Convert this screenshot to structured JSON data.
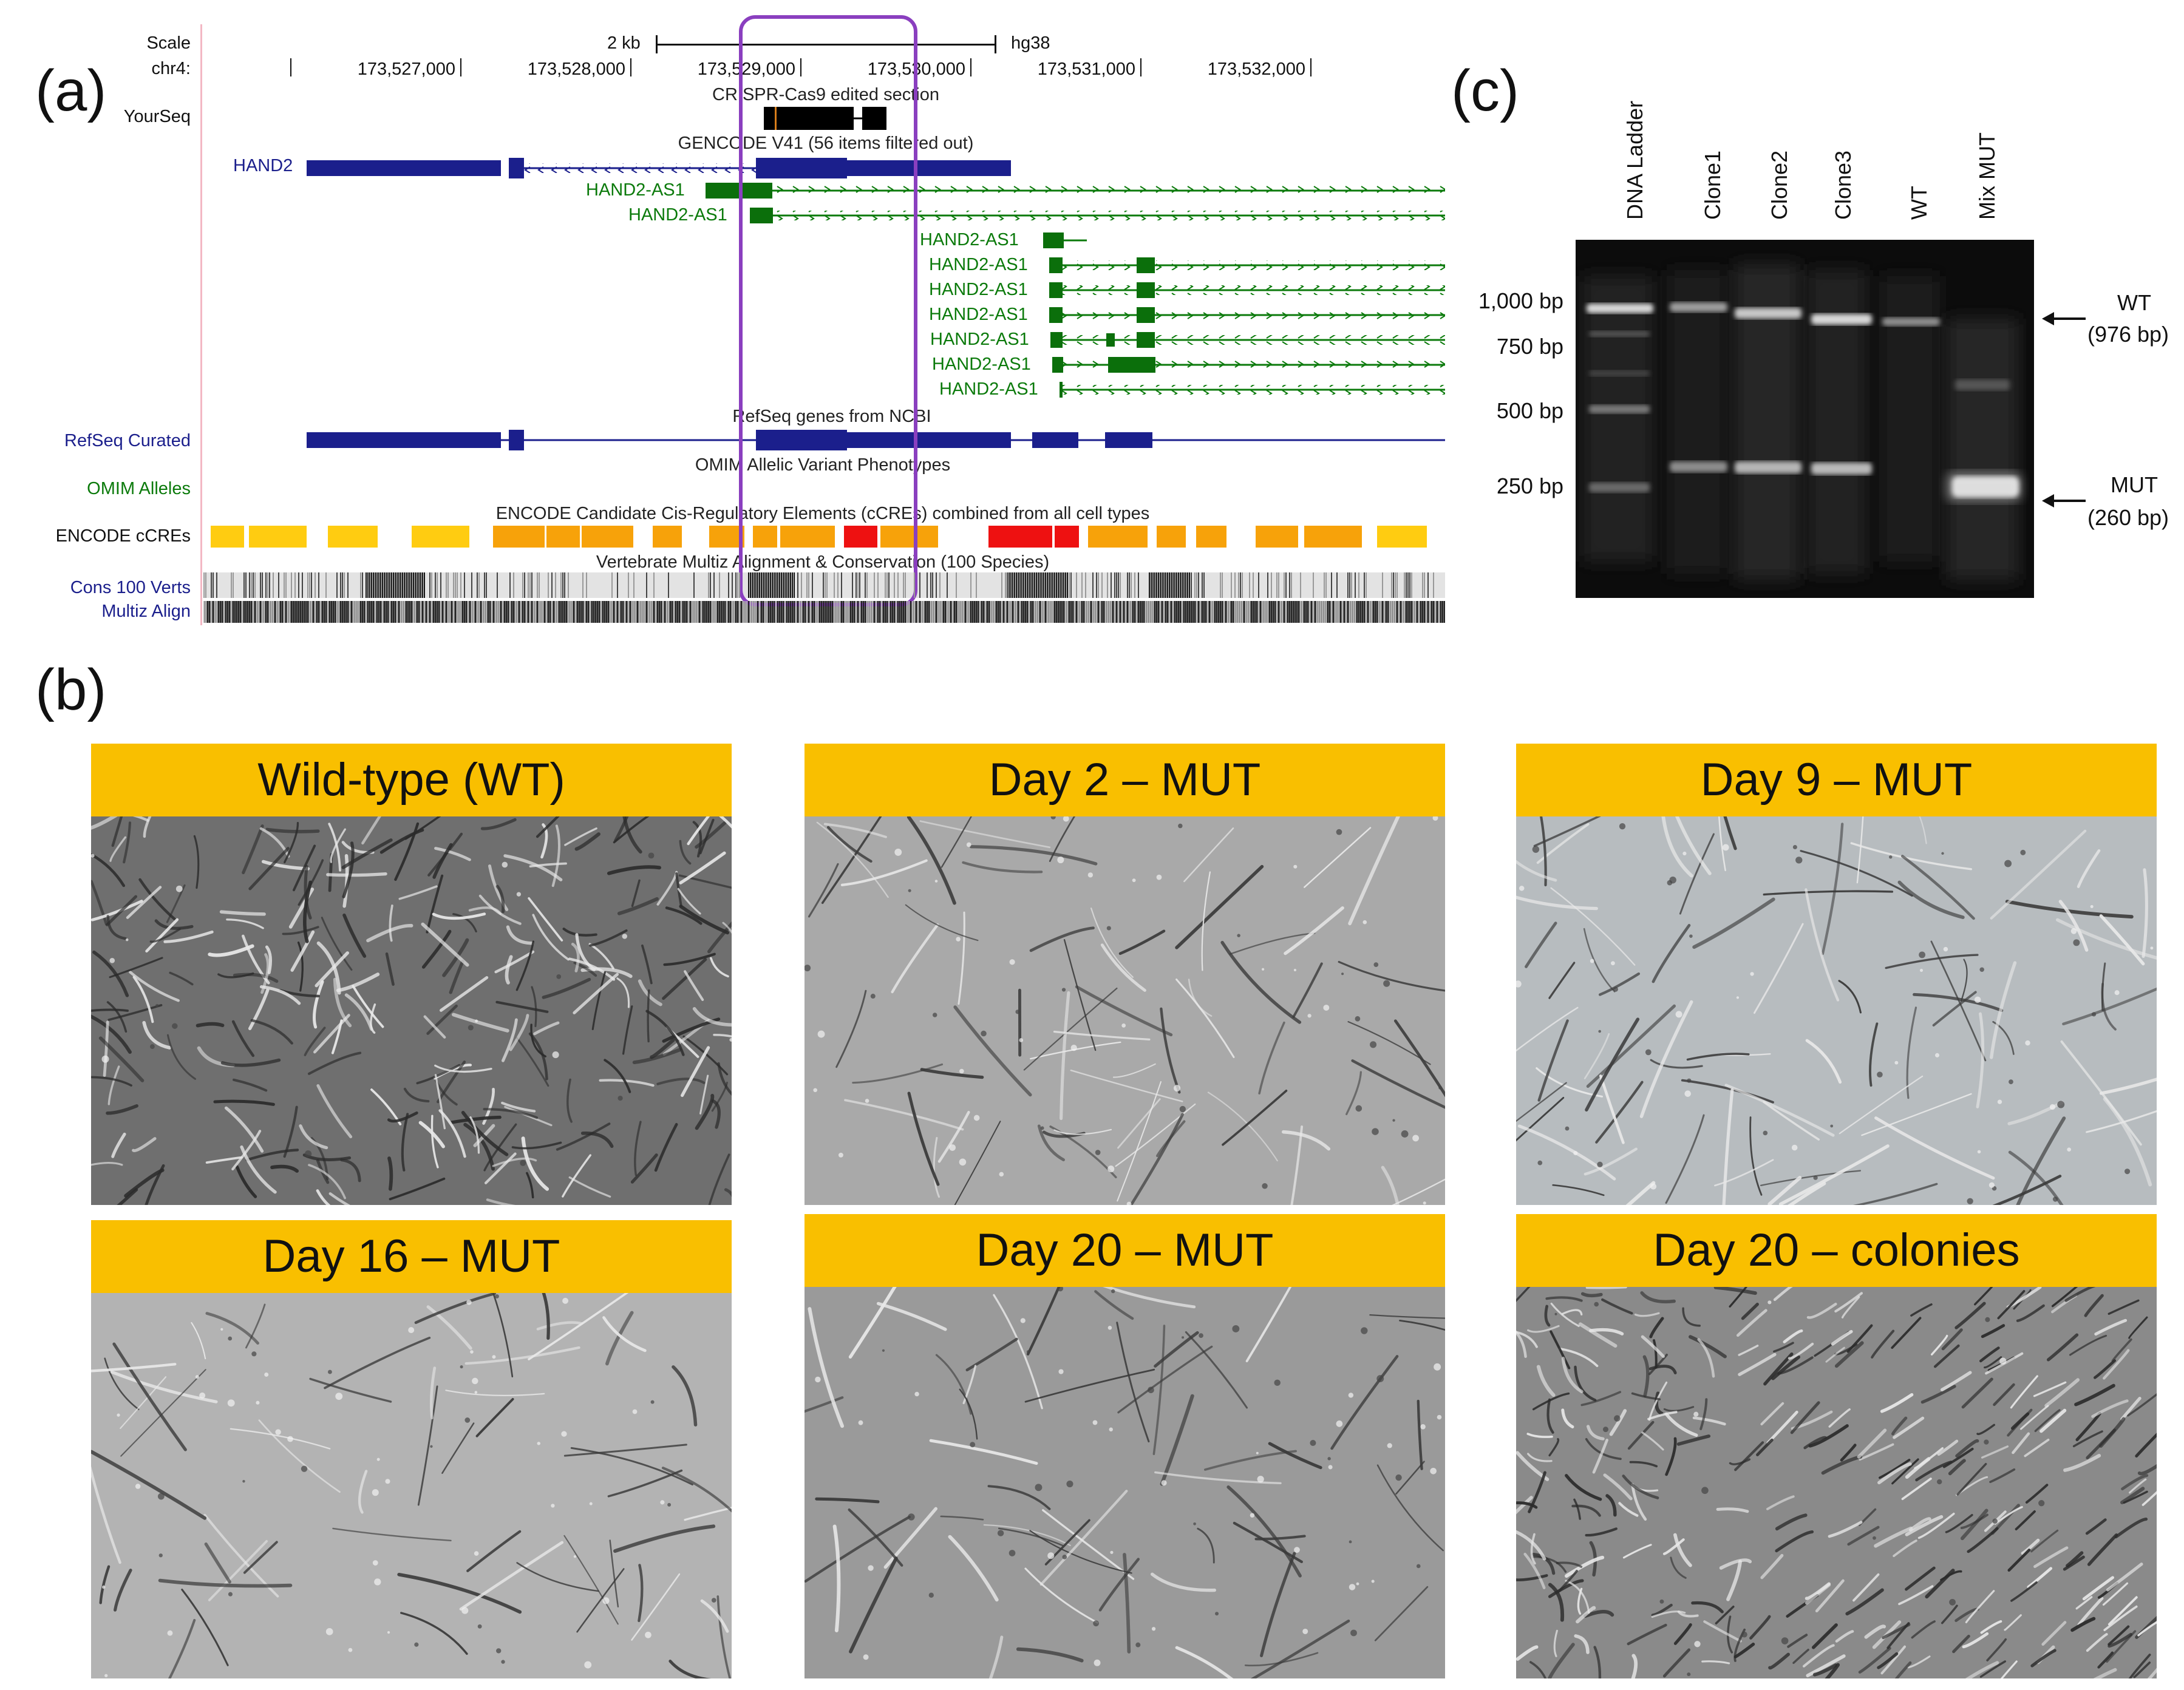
{
  "panel_a": {
    "label": "(a)",
    "scale_label": "Scale",
    "scale_value": "2 kb",
    "assembly": "hg38",
    "chrom_label": "chr4:",
    "coords": [
      "173,527,000",
      "173,528,000",
      "173,529,000",
      "173,530,000",
      "173,531,000",
      "173,532,000"
    ],
    "track_labels": {
      "yourseq": "YourSeq",
      "refseq": "RefSeq Curated",
      "omim": "OMIM Alleles",
      "encode": "ENCODE cCREs",
      "cons": "Cons 100 Verts",
      "multiz": "Multiz Align"
    },
    "titles": {
      "crispr": "CRISPR-Cas9 edited section",
      "gencode": "GENCODE V41 (56 items filtered out)",
      "refseq": "RefSeq genes from NCBI",
      "omim": "OMIM Allelic Variant Phenotypes",
      "encode": "ENCODE Candidate Cis-Regulatory Elements (cCREs) combined from all cell types",
      "cons": "Vertebrate Multiz Alignment & Conservation (100 Species)"
    },
    "genes": {
      "hand2": "HAND2",
      "as1": [
        "HAND2-AS1",
        "HAND2-AS1",
        "HAND2-AS1",
        "HAND2-AS1",
        "HAND2-AS1",
        "HAND2-AS1",
        "HAND2-AS1",
        "HAND2-AS1",
        "HAND2-AS1"
      ]
    },
    "colors": {
      "navy": "#1b1f8c",
      "green": "#0b7a0b",
      "highlight": "#8a3fbf",
      "ccre_orange": "#f7a20a",
      "ccre_yellow": "#ffcc11",
      "ccre_red": "#ee1111"
    }
  },
  "panel_b": {
    "label": "(b)",
    "panels": [
      {
        "title": "Wild-type (WT)"
      },
      {
        "title": "Day 2 – MUT"
      },
      {
        "title": "Day 9 – MUT"
      },
      {
        "title": "Day 16 – MUT"
      },
      {
        "title": "Day 20 – MUT"
      },
      {
        "title": "Day 20 – colonies"
      }
    ]
  },
  "panel_c": {
    "label": "(c)",
    "lanes": [
      "DNA Ladder",
      "Clone1",
      "Clone2",
      "Clone3",
      "WT",
      "Mix MUT"
    ],
    "bp_markers": [
      "1,000 bp",
      "750 bp",
      "500 bp",
      "250 bp"
    ],
    "wt_band": {
      "label": "WT",
      "size": "(976 bp)"
    },
    "mut_band": {
      "label": "MUT",
      "size": "(260 bp)"
    }
  }
}
